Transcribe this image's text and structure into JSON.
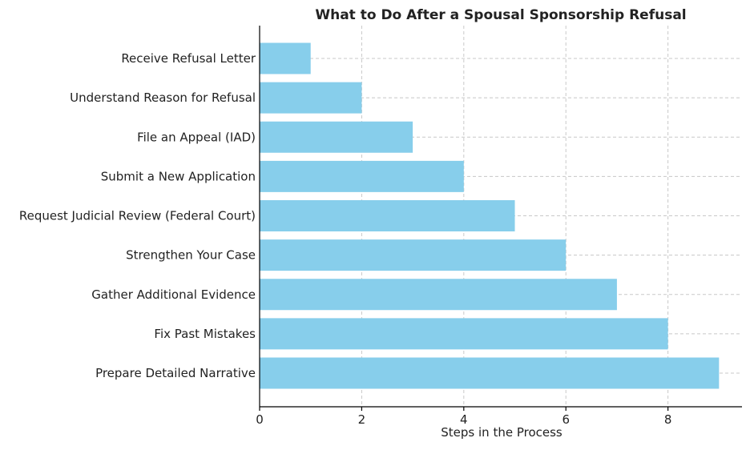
{
  "chart_data": {
    "type": "bar",
    "orientation": "horizontal",
    "title": "What to Do After a Spousal Sponsorship Refusal",
    "xlabel": "Steps in the Process",
    "ylabel": "",
    "categories": [
      "Receive Refusal Letter",
      "Understand Reason for Refusal",
      "File an Appeal (IAD)",
      "Submit a New Application",
      "Request Judicial Review (Federal Court)",
      "Strengthen Your Case",
      "Gather Additional Evidence",
      "Fix Past Mistakes",
      "Prepare Detailed Narrative"
    ],
    "values": [
      1,
      2,
      3,
      4,
      5,
      6,
      7,
      8,
      9
    ],
    "xlim": [
      0,
      9.45
    ],
    "xticks": [
      0,
      2,
      4,
      6,
      8
    ],
    "grid": true,
    "bar_color": "#87ceeb"
  }
}
